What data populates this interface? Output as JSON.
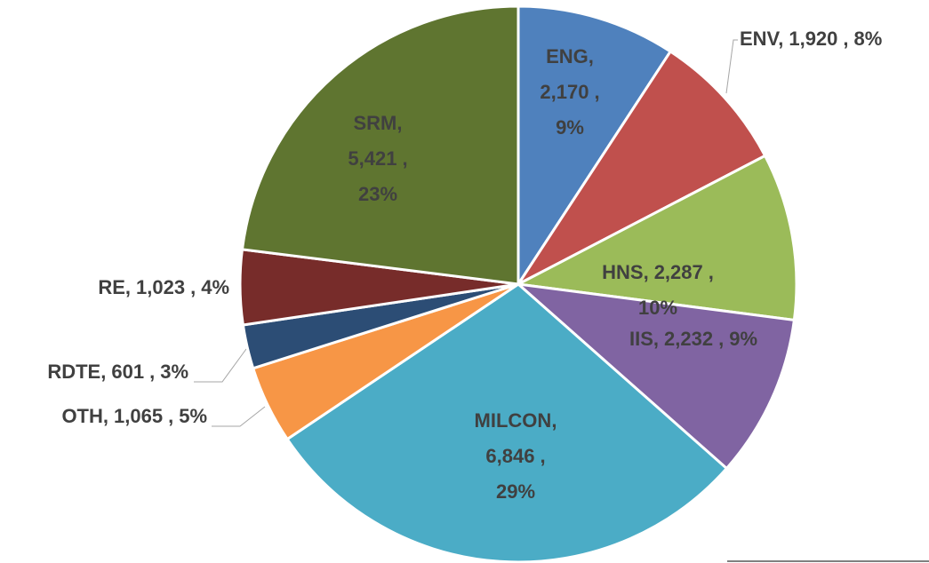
{
  "chart_data": {
    "type": "pie",
    "categories": [
      "ENG",
      "ENV",
      "HNS",
      "IIS",
      "MILCON",
      "OTH",
      "RDTE",
      "RE",
      "SRM"
    ],
    "values": [
      2170,
      1920,
      2287,
      2232,
      6846,
      1065,
      601,
      1023,
      5421
    ],
    "value_labels": [
      "2,170",
      "1,920",
      "2,287",
      "2,232",
      "6,846",
      "1,065",
      "601",
      "1,023",
      "5,421"
    ],
    "percents": [
      9,
      8,
      10,
      9,
      29,
      5,
      3,
      4,
      23
    ],
    "percent_labels": [
      "9%",
      "8%",
      "10%",
      "9%",
      "29%",
      "5%",
      "3%",
      "4%",
      "23%"
    ],
    "label_separator": ",",
    "colors": [
      "#4f81bd",
      "#c0504d",
      "#9bbb59",
      "#8064a2",
      "#4bacc6",
      "#f79646",
      "#2c4d75",
      "#772c2a",
      "#5f7530"
    ]
  }
}
